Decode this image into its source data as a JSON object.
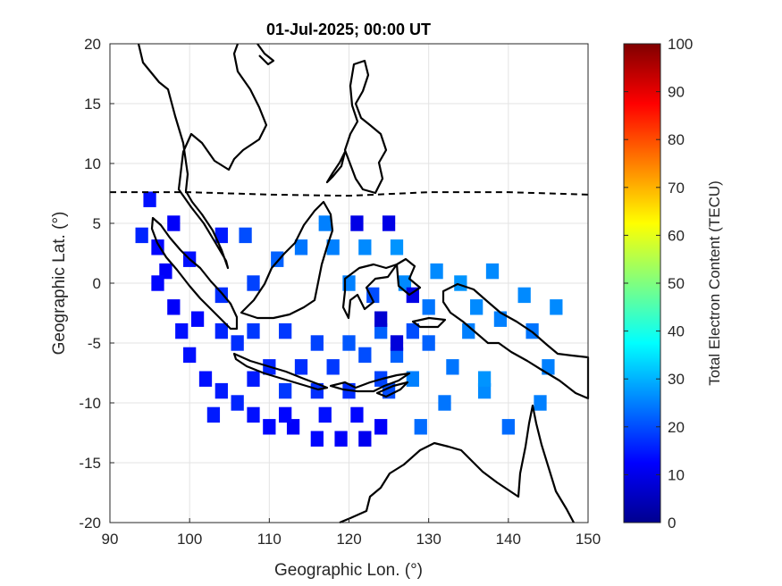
{
  "chart_data": {
    "type": "heatmap",
    "title": "01-Jul-2025; 00:00 UT",
    "xlabel": "Geographic Lon. (°)",
    "ylabel": "Geographic Lat. (°)",
    "xlim": [
      90,
      150
    ],
    "ylim": [
      -20,
      20
    ],
    "xticks": [
      90,
      100,
      110,
      120,
      130,
      140,
      150
    ],
    "yticks": [
      20,
      15,
      10,
      5,
      0,
      -5,
      -10,
      -15,
      -20
    ],
    "grid": true,
    "colorbar": {
      "label": "Total Electron Content (TECU)",
      "min": 0,
      "max": 100,
      "ticks": [
        100,
        90,
        80,
        70,
        60,
        50,
        40,
        30,
        20,
        10,
        0
      ],
      "colormap": "jet"
    },
    "magnetic_equator": [
      [
        90,
        7.6
      ],
      [
        100,
        7.6
      ],
      [
        110,
        7.4
      ],
      [
        120,
        7.3
      ],
      [
        130,
        7.6
      ],
      [
        140,
        7.6
      ],
      [
        150,
        7.4
      ]
    ],
    "tec_cells": [
      [
        94,
        4,
        16
      ],
      [
        95,
        7,
        14
      ],
      [
        96,
        3,
        13
      ],
      [
        97,
        1,
        12
      ],
      [
        98,
        -2,
        12
      ],
      [
        99,
        -4,
        14
      ],
      [
        100,
        -6,
        14
      ],
      [
        102,
        -8,
        14
      ],
      [
        104,
        -9,
        15
      ],
      [
        106,
        -10,
        16
      ],
      [
        108,
        -11,
        14
      ],
      [
        110,
        -12,
        13
      ],
      [
        113,
        -12,
        12
      ],
      [
        116,
        -13,
        13
      ],
      [
        119,
        -13,
        12
      ],
      [
        122,
        -13,
        11
      ],
      [
        124,
        -12,
        12
      ],
      [
        112,
        -9,
        18
      ],
      [
        116,
        -9,
        17
      ],
      [
        120,
        -9,
        17
      ],
      [
        124,
        -8,
        19
      ],
      [
        106,
        -5,
        17
      ],
      [
        108,
        -4,
        18
      ],
      [
        112,
        -4,
        18
      ],
      [
        116,
        -5,
        19
      ],
      [
        120,
        -5,
        21
      ],
      [
        124,
        -4,
        22
      ],
      [
        128,
        -4,
        20
      ],
      [
        130,
        -5,
        22
      ],
      [
        104,
        -1,
        17
      ],
      [
        108,
        0,
        19
      ],
      [
        111,
        2,
        22
      ],
      [
        114,
        3,
        24
      ],
      [
        118,
        3,
        25
      ],
      [
        122,
        3,
        26
      ],
      [
        126,
        3,
        27
      ],
      [
        120,
        0,
        25
      ],
      [
        123,
        -1,
        20
      ],
      [
        127,
        0,
        26
      ],
      [
        131,
        1,
        26
      ],
      [
        134,
        0,
        27
      ],
      [
        136,
        -2,
        26
      ],
      [
        139,
        -3,
        25
      ],
      [
        143,
        -4,
        24
      ],
      [
        145,
        -7,
        25
      ],
      [
        133,
        -7,
        24
      ],
      [
        128,
        -8,
        25
      ],
      [
        137,
        -9,
        26
      ],
      [
        132,
        -10,
        24
      ],
      [
        129,
        -12,
        23
      ],
      [
        140,
        -12,
        23
      ],
      [
        96,
        0,
        13
      ],
      [
        100,
        2,
        14
      ],
      [
        104,
        4,
        15
      ],
      [
        107,
        4,
        20
      ],
      [
        110,
        -7,
        16
      ],
      [
        114,
        -7,
        17
      ],
      [
        118,
        -7,
        18
      ],
      [
        122,
        -6,
        20
      ],
      [
        126,
        -6,
        22
      ],
      [
        130,
        -2,
        24
      ],
      [
        135,
        -4,
        25
      ],
      [
        117,
        5,
        25
      ],
      [
        121,
        5,
        10
      ],
      [
        125,
        5,
        10
      ],
      [
        124,
        -3,
        8
      ],
      [
        128,
        -1,
        10
      ],
      [
        126,
        -5,
        9
      ],
      [
        103,
        -11,
        15
      ],
      [
        117,
        -11,
        14
      ],
      [
        121,
        -11,
        13
      ],
      [
        125,
        -9,
        20
      ],
      [
        137,
        -8,
        27
      ],
      [
        144,
        -10,
        25
      ],
      [
        146,
        -2,
        26
      ],
      [
        142,
        -1,
        26
      ],
      [
        138,
        1,
        26
      ],
      [
        98,
        5,
        12
      ],
      [
        101,
        -3,
        13
      ],
      [
        104,
        -4,
        16
      ],
      [
        108,
        -8,
        15
      ],
      [
        112,
        -11,
        13
      ]
    ]
  }
}
